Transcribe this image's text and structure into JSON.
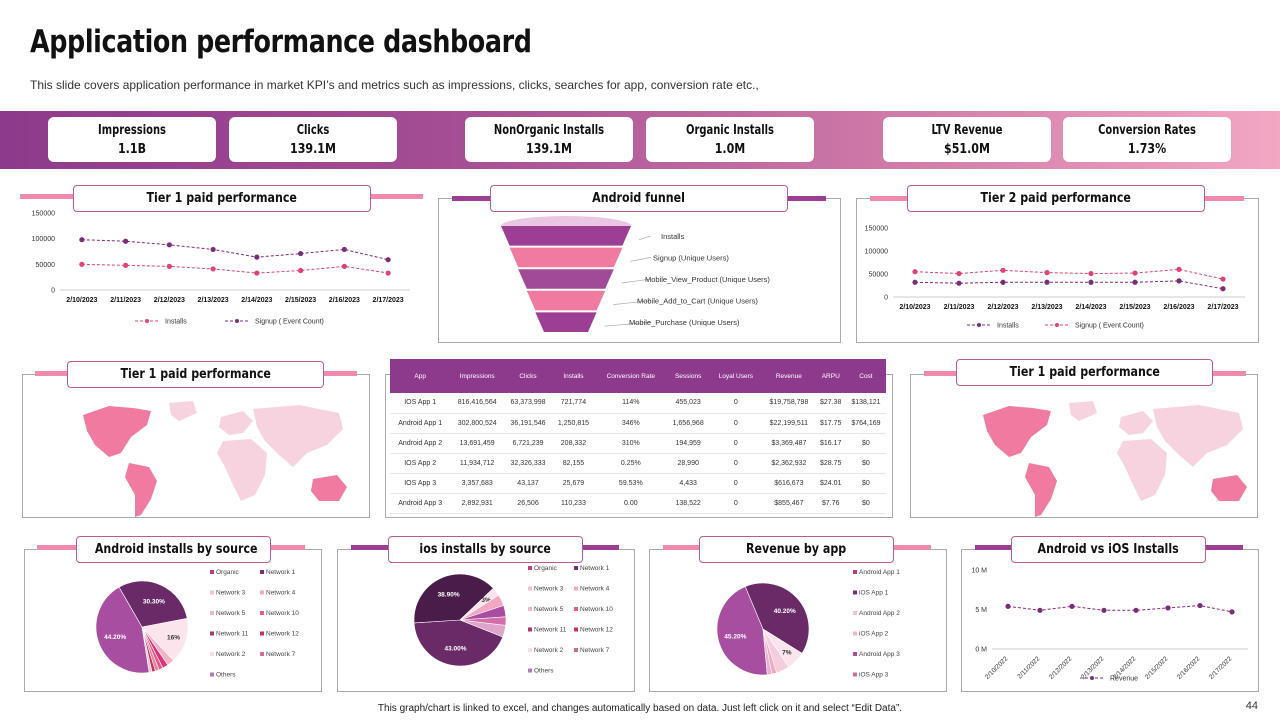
{
  "header": {
    "title": "Application performance dashboard",
    "subtitle": "This slide covers application performance in market KPI’s and metrics such as impressions, clicks, searches for app, conversion rate etc.,"
  },
  "kpis": [
    {
      "label": "Impressions",
      "value": "1.1B"
    },
    {
      "label": "Clicks",
      "value": "139.1M"
    },
    {
      "label": "NonOrganic Installs",
      "value": "139.1M"
    },
    {
      "label": "Organic Installs",
      "value": "1.0M"
    },
    {
      "label": "LTV Revenue",
      "value": "$51.0M"
    },
    {
      "label": "Conversion Rates",
      "value": "1.73%"
    }
  ],
  "panels": {
    "tier1_line": "Tier 1 paid performance",
    "android_funnel": "Android funnel",
    "tier2_line": "Tier 2 paid performance",
    "tier1_map_left": "Tier 1 paid performance",
    "tier1_map_right": "Tier 1 paid performance",
    "android_sources": "Android installs by source",
    "ios_sources": "ios installs by source",
    "revenue_by_app": "Revenue by app",
    "android_vs_ios": "Android vs iOS Installs"
  },
  "table": {
    "headers": [
      "App",
      "Impressions",
      "Clicks",
      "Installs",
      "Conversion Rate",
      "Sessions",
      "Loyal Users",
      "Revenue",
      "ARPU",
      "Cost"
    ],
    "rows": [
      [
        "IOS App 1",
        "816,416,564",
        "63,373,998",
        "721,774",
        "114%",
        "455,023",
        "0",
        "$19,758,798",
        "$27.38",
        "$138,121"
      ],
      [
        "Android App 1",
        "302,800,524",
        "36,191,546",
        "1,250,815",
        "346%",
        "1,656,968",
        "0",
        "$22,199,511",
        "$17.75",
        "$764,169"
      ],
      [
        "Android App 2",
        "13,691,459",
        "6,721,239",
        "208,332",
        "310%",
        "194,959",
        "0",
        "$3,369,487",
        "$16.17",
        "$0"
      ],
      [
        "IOS App 2",
        "11,934,712",
        "32,326,333",
        "82,155",
        "0.25%",
        "28,990",
        "0",
        "$2,362,932",
        "$28.75",
        "$0"
      ],
      [
        "IOS App 3",
        "3,357,683",
        "43,137",
        "25,679",
        "59.53%",
        "4,433",
        "0",
        "$616,673",
        "$24.01",
        "$0"
      ],
      [
        "Android App 3",
        "2,892,931",
        "26,506",
        "110,233",
        "0.00",
        "138,522",
        "0",
        "$855,467",
        "$7.76",
        "$0"
      ]
    ]
  },
  "footer": {
    "note": "This graph/chart is linked to excel, and changes automatically based on data. Just left click on it and select “Edit Data”.",
    "page": "44"
  },
  "colors": {
    "primary": "#8e3a8c",
    "pink": "#e0417a",
    "light_pink": "#f3a7c3",
    "map_land": "#f7d3df",
    "map_highlight": "#f07aa0"
  },
  "chart_data": [
    {
      "id": "tier1",
      "type": "line",
      "categories": [
        "2/10/2023",
        "2/11/2023",
        "2/12/2023",
        "2/13/2023",
        "2/14/2023",
        "2/15/2023",
        "2/16/2023",
        "2/17/2023"
      ],
      "ylim": [
        0,
        150000
      ],
      "yticks": [
        0,
        50000,
        100000,
        150000
      ],
      "ytick_labels": [
        "0",
        "50000",
        "100000",
        "150000"
      ],
      "series": [
        {
          "name": "Installs",
          "color": "#e0417a",
          "values": [
            50000,
            48000,
            46000,
            41000,
            33000,
            38000,
            46000,
            33000
          ]
        },
        {
          "name": "Signup ( Event Count)",
          "color": "#7b2d78",
          "values": [
            98000,
            95000,
            88000,
            79000,
            64000,
            71000,
            79000,
            59000
          ]
        }
      ]
    },
    {
      "id": "tier2",
      "type": "line",
      "categories": [
        "2/10/2023",
        "2/11/2023",
        "2/12/2023",
        "2/13/2023",
        "2/14/2023",
        "2/15/2023",
        "2/16/2023",
        "2/17/2023"
      ],
      "ylim": [
        0,
        150000
      ],
      "yticks": [
        0,
        50000,
        100000,
        150000
      ],
      "ytick_labels": [
        "0",
        "50000",
        "100000",
        "150000"
      ],
      "series": [
        {
          "name": "Installs",
          "color": "#7b2d78",
          "values": [
            32000,
            30000,
            32000,
            32000,
            32000,
            32000,
            35000,
            18000
          ]
        },
        {
          "name": "Signup ( Event Count)",
          "color": "#e0417a",
          "values": [
            55000,
            51000,
            58000,
            53000,
            51000,
            52000,
            60000,
            39000
          ]
        }
      ]
    },
    {
      "id": "funnel",
      "type": "funnel",
      "stages": [
        "Installs",
        "Signup  (Unique Users)",
        "Mobile_View_Product  (Unique Users)",
        "Mobile_Add_to_Cart  (Unique Users)",
        "Mobile_Purchase  (Unique Users)"
      ],
      "colors": [
        "#9b3e94",
        "#f07aa0",
        "#a14a98",
        "#f07aa0",
        "#9b3e94"
      ]
    },
    {
      "id": "android_pie",
      "type": "pie",
      "slices": [
        {
          "name": "Others",
          "value": 44.2,
          "label": "44.20%",
          "color": "#a84ea0"
        },
        {
          "name": "Network 7",
          "value": 30.3,
          "label": "30.30%",
          "color": "#6a2a68"
        },
        {
          "name": "Organic",
          "value": 16,
          "label": "16%",
          "color": "#fbe4ec"
        },
        {
          "name": "Network 1",
          "value": 2.5,
          "label": "",
          "color": "#f6b3c8"
        },
        {
          "name": "Network 3",
          "value": 2,
          "label": "",
          "color": "#d8357c"
        },
        {
          "name": "Network 4",
          "value": 1.5,
          "label": "",
          "color": "#e85a8a"
        },
        {
          "name": "Network 5",
          "value": 1.3,
          "label": "",
          "color": "#f37da0"
        },
        {
          "name": "Network 10",
          "value": 1.2,
          "label": "",
          "color": "#c92f5f"
        },
        {
          "name": "Network 2",
          "value": 1,
          "label": "",
          "color": "#f2c2d2"
        }
      ],
      "legend": [
        "Organic",
        "Network 1",
        "Network 3",
        "Network 4",
        "Network 5",
        "Network 10",
        "Network 11",
        "Network 12",
        "Network 2",
        "Network 7",
        "Others"
      ],
      "legend_colors": [
        "#c43b7a",
        "#7b2d78",
        "#f6c0d2",
        "#f5a8bf",
        "#f3b4c8",
        "#e85a8a",
        "#a83a6a",
        "#c92f5f",
        "#f9dbe5",
        "#d46a9a",
        "#b37ab5"
      ]
    },
    {
      "id": "ios_pie",
      "type": "pie",
      "slices": [
        {
          "name": "Network 7",
          "value": 43,
          "label": "43.00%",
          "color": "#6a2a68"
        },
        {
          "name": "Network 2",
          "value": 38.9,
          "label": "38.90%",
          "color": "#4a1c4a"
        },
        {
          "name": "Organic",
          "value": 3,
          "label": "3%",
          "color": "#fbe4ec"
        },
        {
          "name": "Network 1",
          "value": 4,
          "label": "",
          "color": "#f3a7c3"
        },
        {
          "name": "Network 3",
          "value": 4,
          "label": "",
          "color": "#a84ea0"
        },
        {
          "name": "Network 4",
          "value": 3,
          "label": "",
          "color": "#d26fa8"
        },
        {
          "name": "Others",
          "value": 4.1,
          "label": "",
          "color": "#e0a3c9"
        }
      ],
      "legend": [
        "Organic",
        "Network 1",
        "Network 3",
        "Network 4",
        "Network 5",
        "Network 10",
        "Network 11",
        "Network 12",
        "Network 2",
        "Network 7",
        "Others"
      ],
      "legend_colors": [
        "#c43b7a",
        "#7b2d78",
        "#f6c0d2",
        "#f5a8bf",
        "#f3b4c8",
        "#e85a8a",
        "#a83a6a",
        "#c92f5f",
        "#f9dbe5",
        "#d46a9a",
        "#b37ab5"
      ]
    },
    {
      "id": "revenue_pie",
      "type": "pie",
      "slices": [
        {
          "name": "Android App 1",
          "value": 45.2,
          "label": "45.20%",
          "color": "#a84ea0"
        },
        {
          "name": "iOS App 1",
          "value": 40.2,
          "label": "40.20%",
          "color": "#6a2a68"
        },
        {
          "name": "Android App 2",
          "value": 6.6,
          "label": "7%",
          "color": "#fbe4ec"
        },
        {
          "name": "iOS App 2",
          "value": 4.7,
          "label": "",
          "color": "#f6cddc"
        },
        {
          "name": "Android App 3",
          "value": 1.7,
          "label": "",
          "color": "#f3a7c3"
        },
        {
          "name": "iOS App 3",
          "value": 1.6,
          "label": "",
          "color": "#e9b0cf"
        }
      ],
      "legend": [
        "Android App 1",
        "iOS App 1",
        "Android App 2",
        "iOS App 2",
        "Android App 3",
        "iOS App 3"
      ],
      "legend_colors": [
        "#c43b7a",
        "#7b2d78",
        "#f6c0d2",
        "#f3b4c8",
        "#a84ea0",
        "#d46a9a"
      ]
    },
    {
      "id": "android_vs_ios",
      "type": "line",
      "categories": [
        "2/10/2022",
        "2/11/2022",
        "2/12/2022",
        "2/13/2022",
        "2/14/2022",
        "2/15/2022",
        "2/16/2022",
        "2/17/2022"
      ],
      "ylim": [
        0,
        10
      ],
      "yticks": [
        0,
        5,
        10
      ],
      "ytick_labels": [
        "0 M",
        "5 M",
        "10 M"
      ],
      "series": [
        {
          "name": "Revenue",
          "color": "#7b2d78",
          "values": [
            5.4,
            4.9,
            5.4,
            4.9,
            4.9,
            5.2,
            5.5,
            4.7
          ]
        }
      ]
    }
  ]
}
